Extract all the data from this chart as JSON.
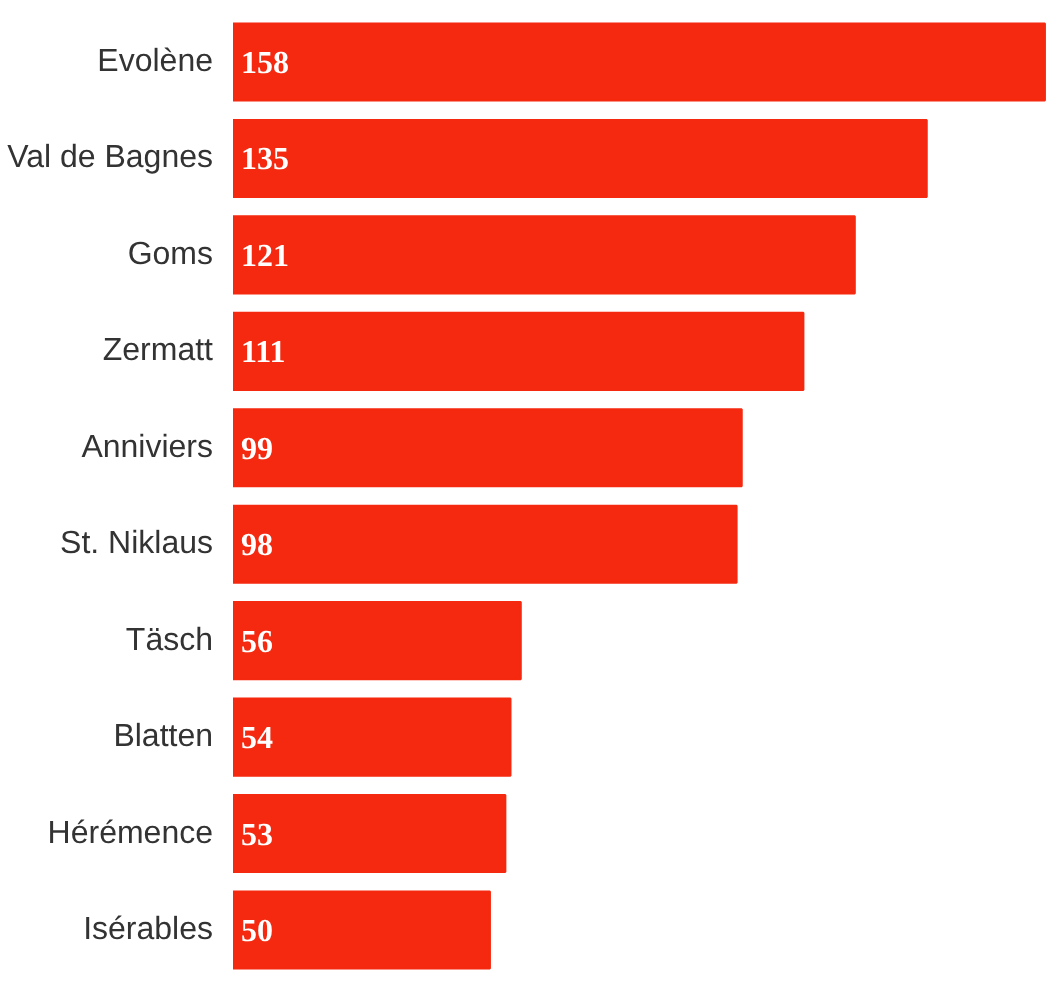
{
  "chart_data": {
    "type": "bar",
    "orientation": "horizontal",
    "data_labels": true,
    "color": "#f5290f",
    "categories": [
      "Evolène",
      "Val de Bagnes",
      "Goms",
      "Zermatt",
      "Anniviers",
      "St. Niklaus",
      "Täsch",
      "Blatten",
      "Hérémence",
      "Isérables"
    ],
    "values": [
      158,
      135,
      121,
      111,
      99,
      98,
      56,
      54,
      53,
      50
    ]
  }
}
